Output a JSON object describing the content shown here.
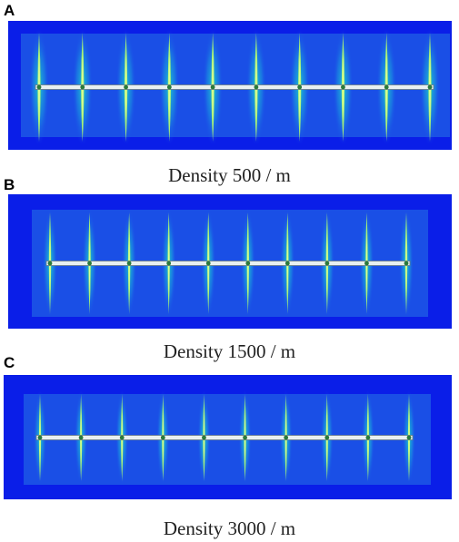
{
  "panels": [
    {
      "letter": "A",
      "caption": "Density 500 / m",
      "fracture_count": 10
    },
    {
      "letter": "B",
      "caption": "Density 1500 / m",
      "fracture_count": 10
    },
    {
      "letter": "C",
      "caption": "Density 3000 / m",
      "fracture_count": 10
    }
  ],
  "colors": {
    "background_field": "#0a1ee8",
    "inner_field": "#1a4fe6",
    "fracture_core": "#b9ff6a",
    "fracture_glow": "#1fd6c4",
    "wellbore": "#e8f0f0"
  }
}
